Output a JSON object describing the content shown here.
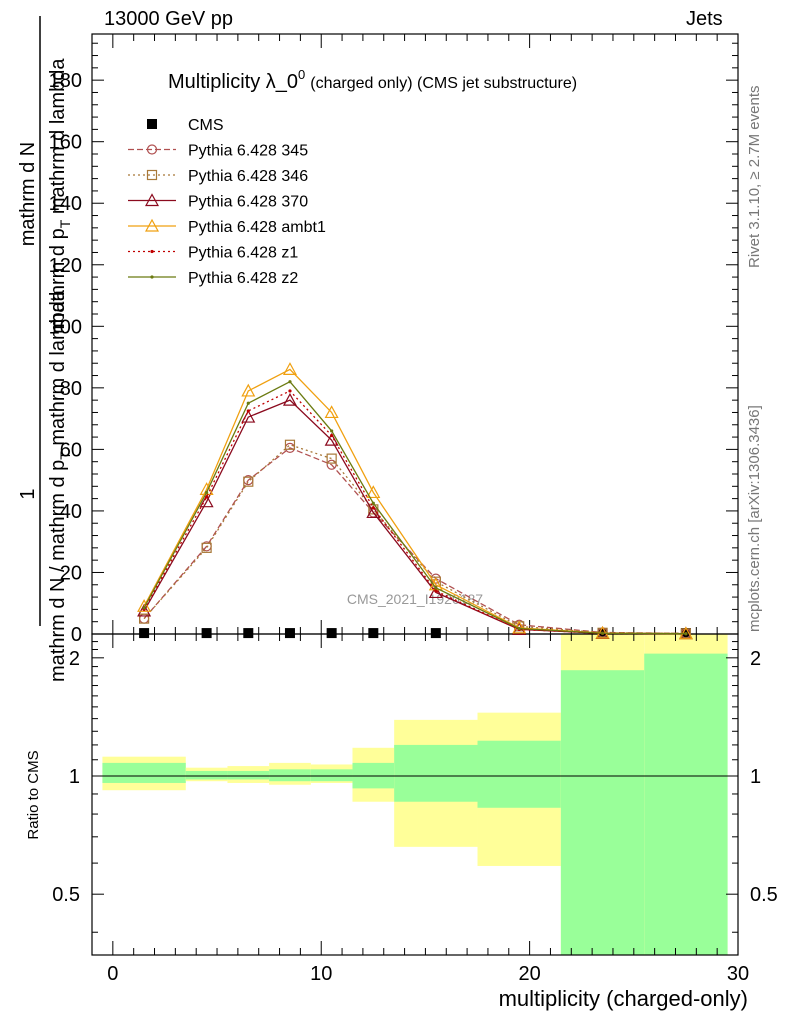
{
  "header": {
    "left": "13000 GeV pp",
    "right": "Jets"
  },
  "side_labels": {
    "rivet": "Rivet 3.1.10, ≥ 2.7M events",
    "mcplots": "mcplots.cern.ch [arXiv:1306.3436]"
  },
  "watermark": "CMS_2021_I1920187",
  "chart_data": [
    {
      "type": "line",
      "title_main": "Multiplicity λ_0",
      "title_sup": "0",
      "title_sub": "(charged only) (CMS jet substructure)",
      "ylabel_top": "1",
      "ylabel_den1": "mathrm d N / mathrm d p",
      "ylabel_den1_sub": "T",
      "ylabel_den2": "mathrm d lambda",
      "ylabel_num": "mathrm d",
      "ylabel_num2": "N",
      "ylabel_numden": "mathrm d p",
      "ylabel_numden_sub": "T",
      "ylabel_numden2": "mathrm d lambda",
      "xlim": [
        -1,
        30
      ],
      "ylim": [
        0,
        195
      ],
      "yticks": [
        0,
        20,
        40,
        60,
        80,
        100,
        120,
        140,
        160,
        180
      ],
      "x": [
        1.5,
        4.5,
        6.5,
        8.5,
        10.5,
        12.5,
        15.5,
        19.5,
        23.5,
        27.5
      ],
      "series": [
        {
          "name": "CMS",
          "color": "#000000",
          "marker": "square",
          "style": "none",
          "values": [
            0.3,
            0.3,
            0.3,
            0.3,
            0.3,
            0.3,
            0.3,
            0.3,
            0.3,
            0.3
          ]
        },
        {
          "name": "Pythia 6.428 345",
          "color": "#b05050",
          "marker": "circle",
          "style": "dashed",
          "values": [
            5,
            28.5,
            50,
            60.5,
            55,
            39.5,
            18,
            3,
            0.5,
            0.2
          ]
        },
        {
          "name": "Pythia 6.428 346",
          "color": "#a87838",
          "marker": "square-open",
          "style": "dotted",
          "values": [
            5,
            28,
            49.5,
            61.5,
            57,
            40.5,
            17,
            2.5,
            0.4,
            0.2
          ]
        },
        {
          "name": "Pythia 6.428 370",
          "color": "#8b0a1e",
          "marker": "triangle",
          "style": "solid",
          "values": [
            7.5,
            43,
            70.5,
            76,
            63,
            39.5,
            13.5,
            1.5,
            0.2,
            0.1
          ]
        },
        {
          "name": "Pythia 6.428 ambt1",
          "color": "#f0a010",
          "marker": "triangle",
          "style": "solid",
          "values": [
            9,
            47,
            79,
            86,
            72,
            46,
            16,
            2,
            0.3,
            0.1
          ]
        },
        {
          "name": "Pythia 6.428 z1",
          "color": "#c00000",
          "marker": "dot",
          "style": "dotted",
          "values": [
            8,
            44.5,
            72.5,
            79,
            64.5,
            41,
            14,
            1.5,
            0.2,
            0.1
          ]
        },
        {
          "name": "Pythia 6.428 z2",
          "color": "#6b7a10",
          "marker": "dot",
          "style": "solid",
          "values": [
            8.5,
            46,
            75,
            82,
            66,
            42.5,
            15,
            1.8,
            0.25,
            0.1
          ]
        }
      ]
    },
    {
      "type": "area",
      "ylabel": "Ratio to CMS",
      "xlabel": "multiplicity (charged-only)",
      "xlim": [
        -1,
        30
      ],
      "ylim": [
        0.35,
        2.3
      ],
      "xticks": [
        0,
        10,
        20,
        30
      ],
      "yticks": [
        0.5,
        1,
        2
      ],
      "bins": [
        {
          "lo": -0.5,
          "hi": 3.5,
          "inner": [
            0.96,
            1.08
          ],
          "outer": [
            0.92,
            1.12
          ]
        },
        {
          "lo": 3.5,
          "hi": 5.5,
          "inner": [
            0.98,
            1.03
          ],
          "outer": [
            0.97,
            1.05
          ]
        },
        {
          "lo": 5.5,
          "hi": 7.5,
          "inner": [
            0.98,
            1.03
          ],
          "outer": [
            0.96,
            1.06
          ]
        },
        {
          "lo": 7.5,
          "hi": 9.5,
          "inner": [
            0.97,
            1.04
          ],
          "outer": [
            0.95,
            1.08
          ]
        },
        {
          "lo": 9.5,
          "hi": 11.5,
          "inner": [
            0.97,
            1.04
          ],
          "outer": [
            0.96,
            1.07
          ]
        },
        {
          "lo": 11.5,
          "hi": 13.5,
          "inner": [
            0.93,
            1.08
          ],
          "outer": [
            0.86,
            1.18
          ]
        },
        {
          "lo": 13.5,
          "hi": 17.5,
          "inner": [
            0.86,
            1.2
          ],
          "outer": [
            0.66,
            1.39
          ]
        },
        {
          "lo": 17.5,
          "hi": 21.5,
          "inner": [
            0.83,
            1.23
          ],
          "outer": [
            0.59,
            1.45
          ]
        },
        {
          "lo": 21.5,
          "hi": 25.5,
          "inner": [
            0.35,
            1.86
          ],
          "outer": [
            0.35,
            2.3
          ]
        },
        {
          "lo": 25.5,
          "hi": 29.5,
          "inner": [
            0.35,
            2.05
          ],
          "outer": [
            0.35,
            2.3
          ]
        }
      ],
      "colors": {
        "inner": "#99ff99",
        "outer": "#ffff99"
      }
    }
  ]
}
